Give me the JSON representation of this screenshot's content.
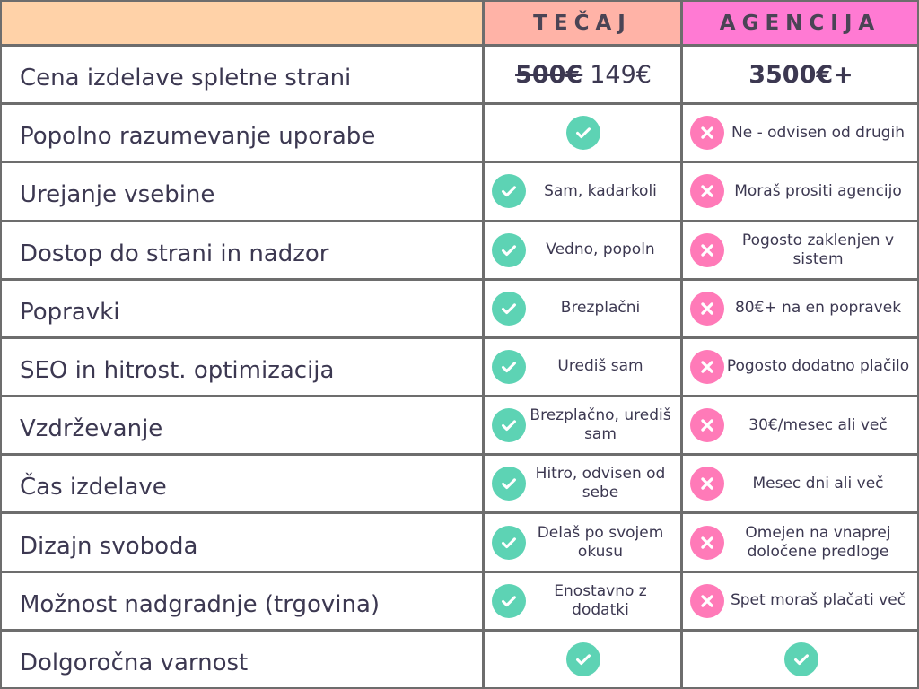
{
  "header": {
    "col1": "",
    "col2": "TEČAJ",
    "col3": "AGENCIJA"
  },
  "colors": {
    "header_blank": "#ffd2a8",
    "header_tecaj": "#ffb3a7",
    "header_agencija": "#ff7ad3",
    "check": "#5dd3b4",
    "cross": "#ff7ab8",
    "border": "#6d6d6d",
    "text": "#3c3851"
  },
  "rows": [
    {
      "label": "Cena izdelave spletne strani",
      "tecaj": {
        "type": "price",
        "old": "500€",
        "text": "149€"
      },
      "agencija": {
        "type": "price",
        "text": "3500€+"
      }
    },
    {
      "label": "Popolno razumevanje uporabe",
      "tecaj": {
        "icon": "check",
        "text": ""
      },
      "agencija": {
        "icon": "cross",
        "text": "Ne - odvisen od drugih"
      }
    },
    {
      "label": "Urejanje vsebine",
      "tecaj": {
        "icon": "check",
        "text": "Sam, kadarkoli"
      },
      "agencija": {
        "icon": "cross",
        "text": "Moraš prositi agencijo"
      }
    },
    {
      "label": "Dostop do strani in nadzor",
      "tecaj": {
        "icon": "check",
        "text": "Vedno, popoln"
      },
      "agencija": {
        "icon": "cross",
        "text": "Pogosto zaklenjen v sistem"
      }
    },
    {
      "label": "Popravki",
      "tecaj": {
        "icon": "check",
        "text": "Brezplačni"
      },
      "agencija": {
        "icon": "cross",
        "text": "80€+ na en popravek"
      }
    },
    {
      "label": "SEO in hitrost. optimizacija",
      "tecaj": {
        "icon": "check",
        "text": "Urediš sam"
      },
      "agencija": {
        "icon": "cross",
        "text": "Pogosto dodatno plačilo"
      }
    },
    {
      "label": "Vzdrževanje",
      "tecaj": {
        "icon": "check",
        "text": "Brezplačno, urediš sam"
      },
      "agencija": {
        "icon": "cross",
        "text": "30€/mesec ali več"
      }
    },
    {
      "label": "Čas izdelave",
      "tecaj": {
        "icon": "check",
        "text": "Hitro, odvisen od sebe"
      },
      "agencija": {
        "icon": "cross",
        "text": "Mesec dni ali več"
      }
    },
    {
      "label": "Dizajn svoboda",
      "tecaj": {
        "icon": "check",
        "text": "Delaš po svojem okusu"
      },
      "agencija": {
        "icon": "cross",
        "text": "Omejen na vnaprej določene predloge"
      }
    },
    {
      "label": "Možnost nadgradnje (trgovina)",
      "tecaj": {
        "icon": "check",
        "text": "Enostavno z dodatki"
      },
      "agencija": {
        "icon": "cross",
        "text": "Spet moraš plačati več"
      }
    },
    {
      "label": "Dolgoročna varnost",
      "tecaj": {
        "icon": "check",
        "text": ""
      },
      "agencija": {
        "icon": "check",
        "text": ""
      }
    }
  ]
}
